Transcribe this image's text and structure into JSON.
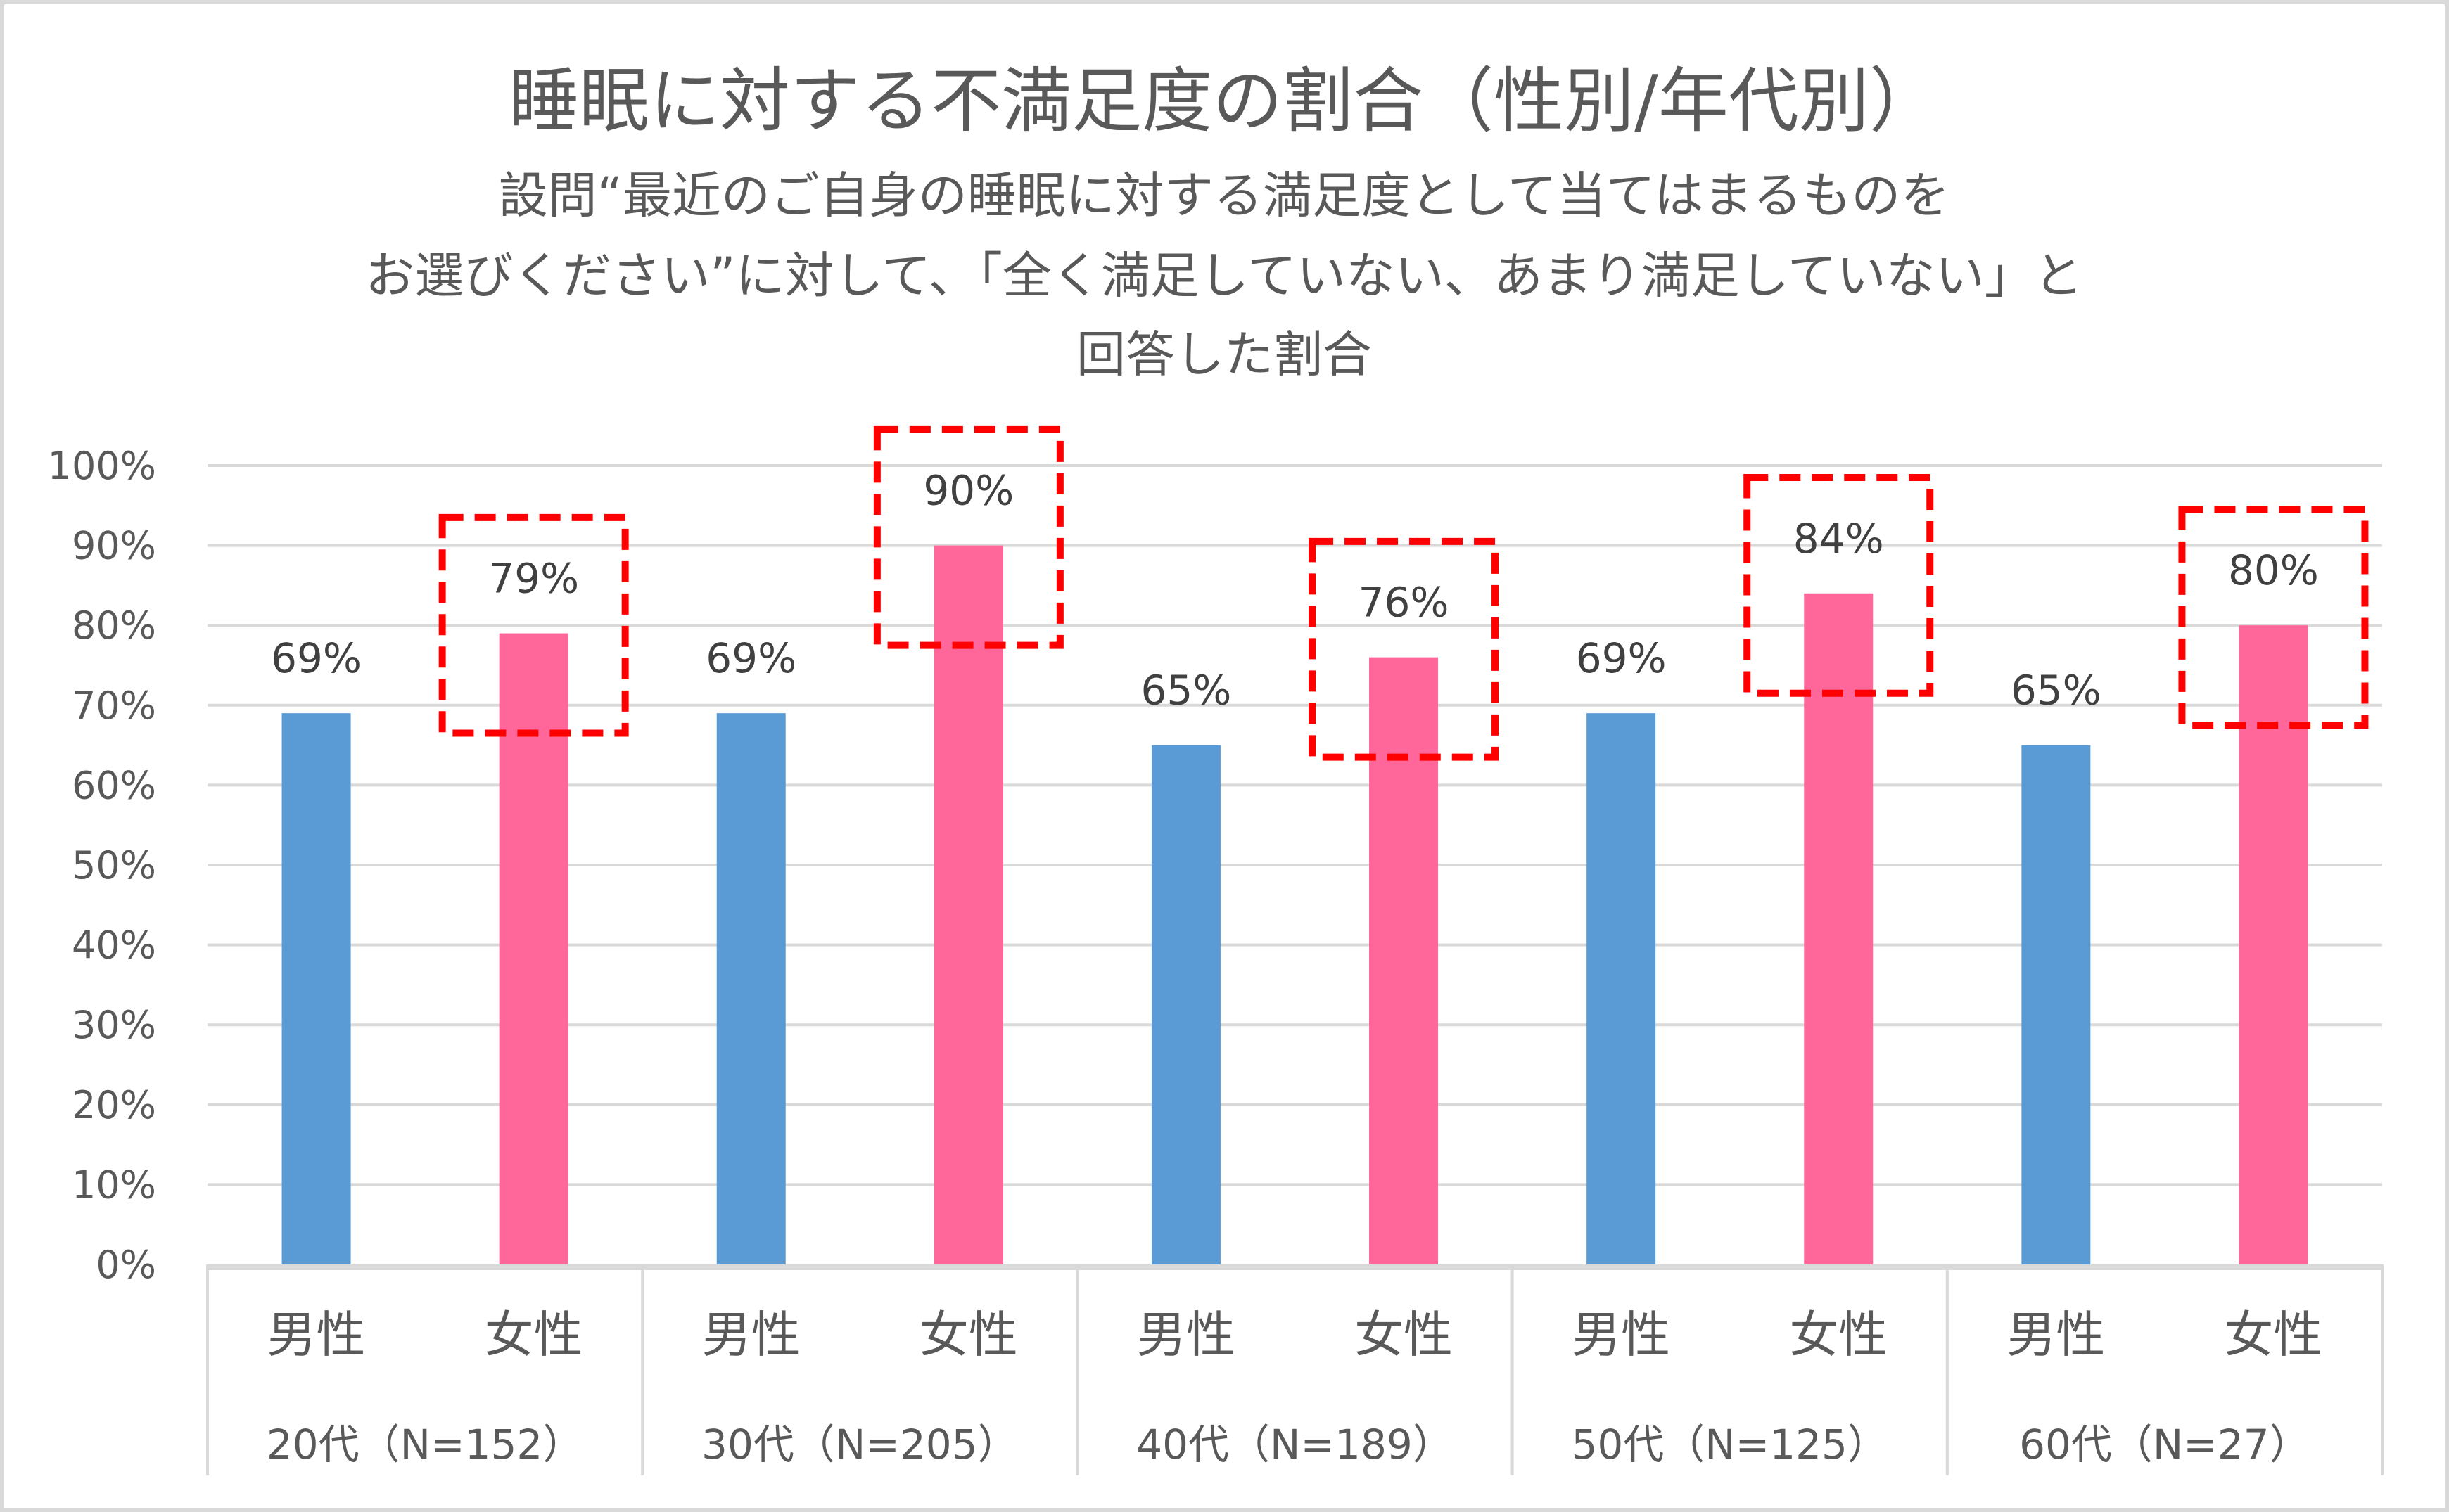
{
  "chart_data": {
    "type": "bar",
    "title": "睡眠に対する不満足度の割合（性別/年代別）",
    "subtitle_lines": [
      "設問“最近のご自身の睡眠に対する満足度として当てはまるものを",
      "お選びください”に対して、「全く満足していない、あまり満足していない」と",
      "回答した割合"
    ],
    "groups": [
      "20代（N=152）",
      "30代（N=205）",
      "40代（N=189）",
      "50代（N=125）",
      "60代（N=27）"
    ],
    "subcategories": [
      "男性",
      "女性"
    ],
    "series": [
      {
        "name": "男性",
        "color": "#5B9BD5",
        "values": [
          69,
          69,
          65,
          69,
          65
        ],
        "labels": [
          "69%",
          "69%",
          "65%",
          "69%",
          "65%"
        ]
      },
      {
        "name": "女性",
        "color": "#FF6699",
        "values": [
          79,
          90,
          76,
          84,
          80
        ],
        "labels": [
          "79%",
          "90%",
          "76%",
          "84%",
          "80%"
        ]
      }
    ],
    "y_ticks": [
      "0%",
      "10%",
      "20%",
      "30%",
      "40%",
      "50%",
      "60%",
      "70%",
      "80%",
      "90%",
      "100%"
    ],
    "ylim": [
      0,
      100
    ],
    "grid": true,
    "legend": "none",
    "highlight": {
      "series": "女性",
      "style": "red dashed box",
      "color": "#FF0000"
    }
  }
}
